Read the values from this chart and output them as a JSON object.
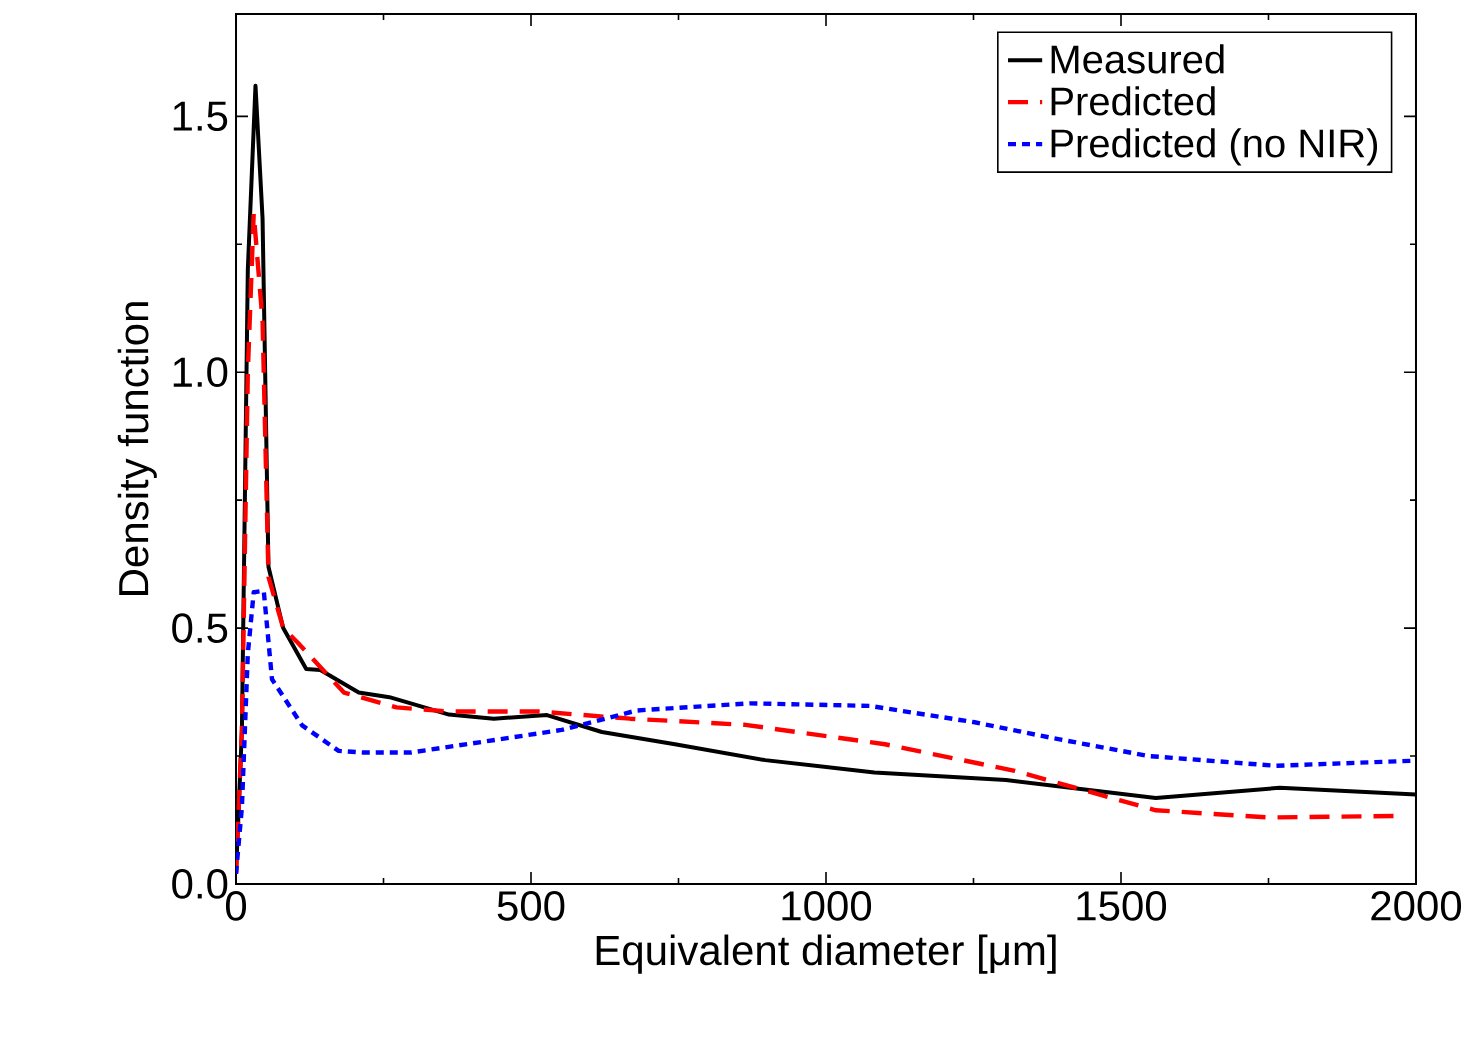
{
  "chart_data": {
    "type": "line",
    "xlabel": "Equivalent diameter [μm]",
    "ylabel": "Density function",
    "xlim": [
      0,
      2000
    ],
    "ylim": [
      0,
      1.7
    ],
    "xticks": [
      0,
      500,
      1000,
      1500,
      2000
    ],
    "yticks": [
      {
        "value": 0,
        "label": "0.0"
      },
      {
        "value": 0.5,
        "label": "0.5"
      },
      {
        "value": 1.0,
        "label": "1.0"
      },
      {
        "value": 1.5,
        "label": "1.5"
      }
    ],
    "grid": false,
    "legend": "top right",
    "marker": "none",
    "series": [
      {
        "name": "Measured",
        "color": "#000000",
        "line_style": "solid",
        "x": [
          0,
          10,
          20,
          33,
          45,
          55,
          80,
          119,
          143,
          208,
          260,
          361,
          437,
          527,
          620,
          744,
          897,
          1082,
          1305,
          1559,
          1769,
          2000
        ],
        "values": [
          0.02,
          0.3,
          1.2,
          1.56,
          1.3,
          0.62,
          0.5,
          0.42,
          0.418,
          0.374,
          0.365,
          0.331,
          0.323,
          0.33,
          0.297,
          0.273,
          0.242,
          0.218,
          0.203,
          0.168,
          0.188,
          0.175
        ]
      },
      {
        "name": "Predicted",
        "color": "#ff0000",
        "line_style": "dashed",
        "x": [
          0,
          10,
          20,
          30,
          45,
          55,
          80,
          106,
          183,
          272,
          361,
          513,
          668,
          863,
          1100,
          1320,
          1559,
          1750,
          1973
        ],
        "values": [
          0.02,
          0.3,
          1.0,
          1.31,
          1.1,
          0.6,
          0.5,
          0.47,
          0.374,
          0.345,
          0.337,
          0.337,
          0.323,
          0.311,
          0.273,
          0.221,
          0.144,
          0.13,
          0.133
        ]
      },
      {
        "name": "Predicted (no NIR)",
        "color": "#0000ff",
        "line_style": "dotted",
        "x": [
          0,
          10,
          20,
          30,
          47,
          61,
          112,
          174,
          215,
          297,
          425,
          552,
          679,
          871,
          1074,
          1252,
          1380,
          1547,
          1762,
          2000
        ],
        "values": [
          0.02,
          0.15,
          0.45,
          0.57,
          0.573,
          0.4,
          0.31,
          0.26,
          0.257,
          0.257,
          0.279,
          0.301,
          0.339,
          0.353,
          0.348,
          0.316,
          0.286,
          0.25,
          0.231,
          0.241
        ]
      }
    ]
  }
}
